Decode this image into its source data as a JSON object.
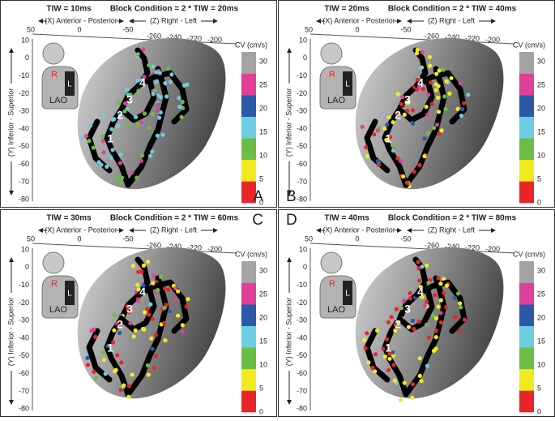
{
  "panels": [
    {
      "tiw": "TIW = 10ms",
      "block": "Block Condition = 2 * TIW = 20ms",
      "letter": "A"
    },
    {
      "tiw": "TIW = 20ms",
      "block": "Block Condition = 2 * TIW = 40ms",
      "letter": "B"
    },
    {
      "tiw": "TIW = 30ms",
      "block": "Block Condition = 2 * TIW = 60ms",
      "letter": "C"
    },
    {
      "tiw": "TIW = 40ms",
      "block": "Block Condition = 2 * TIW = 80ms",
      "letter": "D"
    }
  ],
  "axes": {
    "x_label": "(X) Anterior - Posterior",
    "z_label": "(Z) Right - Left",
    "y_label": "(Y) Inferior - Superior",
    "x_ticks": [
      50,
      0,
      -50
    ],
    "z_ticks": [
      -260,
      -240,
      -220,
      -200
    ],
    "y_ticks": [
      10,
      0,
      -10,
      -20,
      -30,
      -40,
      -50,
      -60,
      -70,
      -80
    ]
  },
  "colorbar": {
    "title": "CV (cm/s)",
    "ticks": [
      0,
      5,
      10,
      15,
      20,
      25,
      30
    ],
    "colors": [
      "#e8262a",
      "#f2ea1c",
      "#6cbd45",
      "#6ccde0",
      "#2a59a8",
      "#e0409a",
      "#a3a3a3"
    ]
  },
  "icon": {
    "right": "R",
    "left": "L",
    "view": "LAO"
  },
  "regions": [
    "1",
    "2",
    "3",
    "4"
  ]
}
